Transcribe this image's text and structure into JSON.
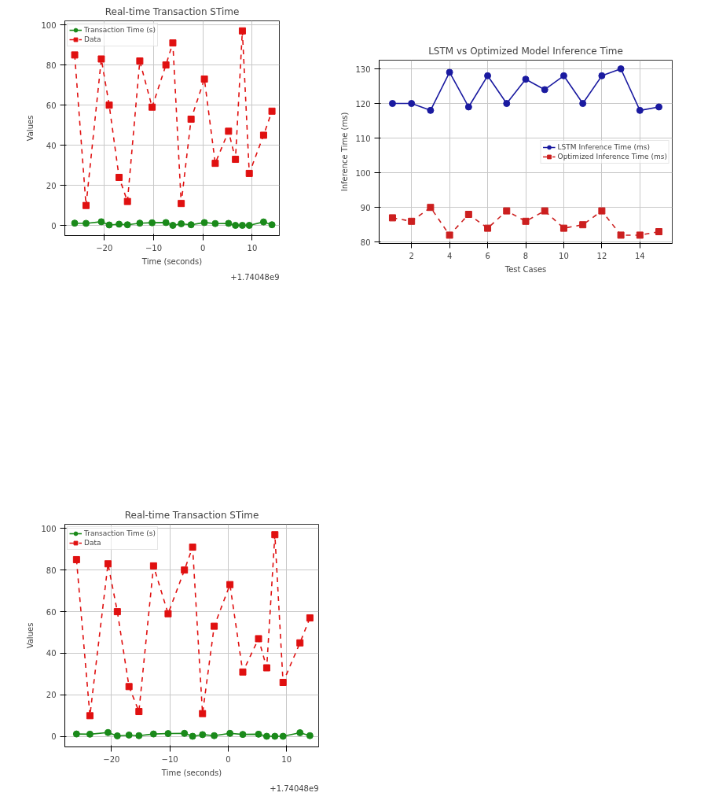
{
  "chart_data": [
    {
      "type": "line",
      "title": "Real-time Transaction STime",
      "xlabel": "Time (seconds)",
      "ylabel": "Values",
      "annotations": [
        "+1.74048e9"
      ],
      "x": [
        -26.0,
        -23.7,
        -20.6,
        -19.0,
        -17.0,
        -15.3,
        -12.8,
        -10.3,
        -7.5,
        -6.1,
        -4.4,
        -2.4,
        0.3,
        2.5,
        5.2,
        6.6,
        8.0,
        9.4,
        12.3,
        14.0
      ],
      "series": [
        {
          "name": "Transaction Time (s)",
          "color": "#1a8a1a",
          "marker": "circle",
          "line_style": "solid",
          "values": [
            1.2,
            1.1,
            1.9,
            0.3,
            0.7,
            0.4,
            1.2,
            1.4,
            1.5,
            0.1,
            0.9,
            0.4,
            1.5,
            1.0,
            1.1,
            0.1,
            0.1,
            0.1,
            1.8,
            0.4
          ]
        },
        {
          "name": "Data",
          "color": "#e01010",
          "marker": "square",
          "line_style": "dashed",
          "values": [
            85,
            10,
            83,
            60,
            24,
            12,
            82,
            59,
            80,
            91,
            11,
            53,
            73,
            31,
            47,
            33,
            97,
            26,
            45,
            57
          ]
        }
      ],
      "xlim": [
        -28,
        15.5
      ],
      "ylim": [
        -5,
        102
      ],
      "xticks": [
        -20,
        -10,
        0,
        10
      ],
      "yticks": [
        0,
        20,
        40,
        60,
        80,
        100
      ],
      "grid": true,
      "legend": "top left"
    },
    {
      "type": "line",
      "title": "LSTM vs Optimized Model Inference Time",
      "xlabel": "Test Cases",
      "ylabel": "Inference Time (ms)",
      "x": [
        1,
        2,
        3,
        4,
        5,
        6,
        7,
        8,
        9,
        10,
        11,
        12,
        13,
        14,
        15
      ],
      "series": [
        {
          "name": "LSTM Inference Time (ms)",
          "color": "#1a1aa0",
          "marker": "circle",
          "line_style": "solid",
          "values": [
            120,
            120,
            118,
            129,
            119,
            128,
            120,
            127,
            124,
            128,
            120,
            128,
            130,
            118,
            119
          ]
        },
        {
          "name": "Optimized Inference Time (ms)",
          "color": "#cc1f1f",
          "marker": "square",
          "line_style": "dashed",
          "values": [
            87,
            86,
            90,
            82,
            88,
            84,
            89,
            86,
            89,
            84,
            85,
            89,
            82,
            82,
            83
          ]
        }
      ],
      "xlim": [
        0.3,
        15.7
      ],
      "ylim": [
        79.6,
        132.5
      ],
      "xticks": [
        2,
        4,
        6,
        8,
        10,
        12,
        14
      ],
      "yticks": [
        80,
        90,
        100,
        110,
        120,
        130
      ],
      "grid": true,
      "legend": "right"
    },
    {
      "type": "line",
      "title": "Real-time Transaction STime",
      "xlabel": "Time (seconds)",
      "ylabel": "Values",
      "annotations": [
        "+1.74048e9"
      ],
      "x": [
        -26.0,
        -23.7,
        -20.6,
        -19.0,
        -17.0,
        -15.3,
        -12.8,
        -10.3,
        -7.5,
        -6.1,
        -4.4,
        -2.4,
        0.3,
        2.5,
        5.2,
        6.6,
        8.0,
        9.4,
        12.3,
        14.0
      ],
      "series": [
        {
          "name": "Transaction Time (s)",
          "color": "#1a8a1a",
          "marker": "circle",
          "line_style": "solid",
          "values": [
            1.2,
            1.1,
            1.9,
            0.3,
            0.7,
            0.4,
            1.2,
            1.4,
            1.5,
            0.1,
            0.9,
            0.4,
            1.5,
            1.0,
            1.1,
            0.1,
            0.1,
            0.1,
            1.8,
            0.4
          ]
        },
        {
          "name": "Data",
          "color": "#e01010",
          "marker": "square",
          "line_style": "dashed",
          "values": [
            85,
            10,
            83,
            60,
            24,
            12,
            82,
            59,
            80,
            91,
            11,
            53,
            73,
            31,
            47,
            33,
            97,
            26,
            45,
            57
          ]
        }
      ],
      "xlim": [
        -28,
        15.5
      ],
      "ylim": [
        -5,
        102
      ],
      "xticks": [
        -20,
        -10,
        0,
        10
      ],
      "yticks": [
        0,
        20,
        40,
        60,
        80,
        100
      ],
      "grid": true,
      "legend": "top left"
    }
  ]
}
